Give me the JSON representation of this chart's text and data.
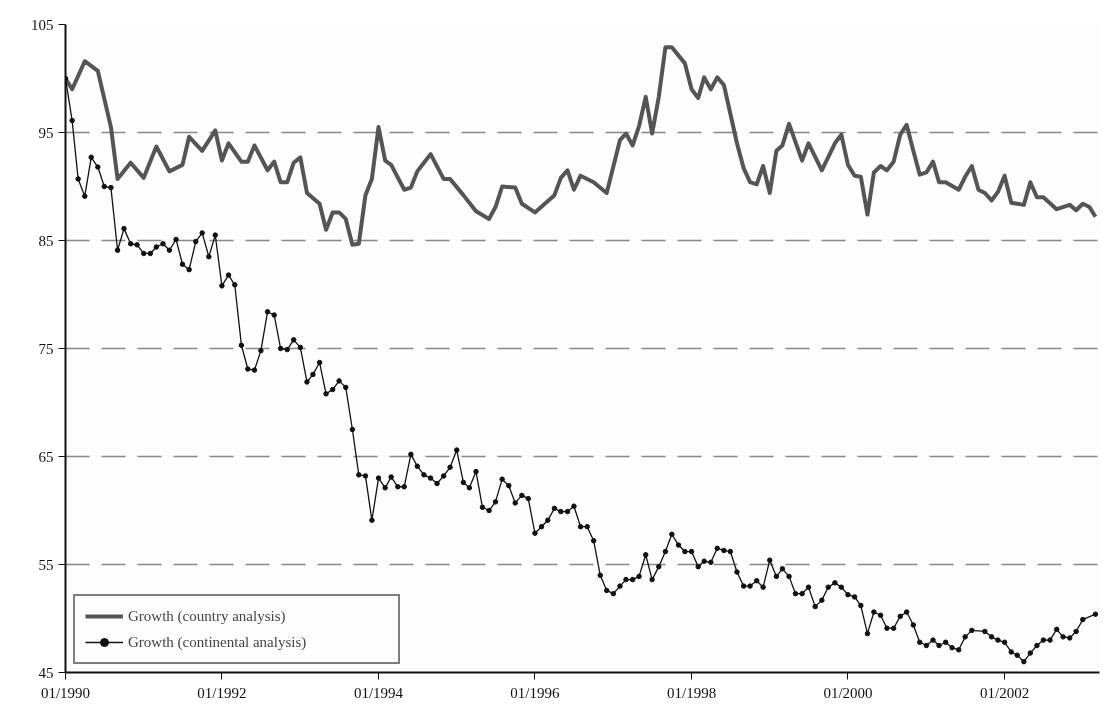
{
  "chart_data": {
    "type": "line",
    "xlim": [
      "1990-01",
      "2003-03-20"
    ],
    "xticks": [
      {
        "value": "1990-01",
        "label": "01/1990"
      },
      {
        "value": "1992-01",
        "label": "01/1992"
      },
      {
        "value": "1994-01",
        "label": "01/1994"
      },
      {
        "value": "1996-01",
        "label": "01/1996"
      },
      {
        "value": "1998-01",
        "label": "01/1998"
      },
      {
        "value": "2000-01",
        "label": "01/2000"
      },
      {
        "value": "2002-01",
        "label": "01/2002"
      }
    ],
    "ylim": [
      45,
      105
    ],
    "yticks": [
      45,
      55,
      65,
      75,
      85,
      95,
      105
    ],
    "grid": "y",
    "legend": "bottom left",
    "line_style": "solid",
    "series": [
      {
        "name": "Growth (country analysis)",
        "color": "#555555",
        "marker": "none",
        "x": [
          "1990-01",
          "1990-02",
          "1990-04",
          "1990-06",
          "1990-08",
          "1990-09",
          "1990-11",
          "1991-01",
          "1991-03",
          "1991-05",
          "1991-07",
          "1991-08",
          "1991-10",
          "1991-12",
          "1992-01",
          "1992-02",
          "1992-04",
          "1992-05",
          "1992-06",
          "1992-08",
          "1992-09",
          "1992-10",
          "1992-11",
          "1992-12",
          "1993-01",
          "1993-02",
          "1993-04",
          "1993-05",
          "1993-06",
          "1993-07",
          "1993-08",
          "1993-09",
          "1993-10",
          "1993-11",
          "1993-12",
          "1994-01",
          "1994-02",
          "1994-03",
          "1994-05",
          "1994-06",
          "1994-07",
          "1994-08",
          "1994-09",
          "1994-11",
          "1994-12",
          "1995-02",
          "1995-04",
          "1995-06",
          "1995-07",
          "1995-08",
          "1995-10",
          "1995-11",
          "1996-01",
          "1996-04",
          "1996-05",
          "1996-06",
          "1996-07",
          "1996-08",
          "1996-10",
          "1996-12",
          "1997-02",
          "1997-03",
          "1997-04",
          "1997-05",
          "1997-06",
          "1997-07",
          "1997-08",
          "1997-09",
          "1997-10",
          "1997-12",
          "1998-01",
          "1998-02",
          "1998-03",
          "1998-04",
          "1998-05",
          "1998-06",
          "1998-08",
          "1998-09",
          "1998-10",
          "1998-11",
          "1998-12",
          "1999-01",
          "1999-02",
          "1999-03",
          "1999-04",
          "1999-06",
          "1999-07",
          "1999-09",
          "1999-11",
          "1999-12",
          "2000-01",
          "2000-02",
          "2000-03",
          "2000-04",
          "2000-05",
          "2000-06",
          "2000-07",
          "2000-08",
          "2000-09",
          "2000-10",
          "2000-11",
          "2000-12",
          "2001-01",
          "2001-02",
          "2001-03",
          "2001-04",
          "2001-06",
          "2001-07",
          "2001-08",
          "2001-09",
          "2001-10",
          "2001-11",
          "2001-12",
          "2002-01",
          "2002-02",
          "2002-04",
          "2002-05",
          "2002-06",
          "2002-07",
          "2002-09",
          "2002-11",
          "2002-12",
          "2003-01",
          "2003-02",
          "2003-03"
        ],
        "values": [
          100,
          99.0,
          101.6,
          100.7,
          95.5,
          90.7,
          92.2,
          90.8,
          93.7,
          91.4,
          92.0,
          94.6,
          93.3,
          95.2,
          92.4,
          94.0,
          92.3,
          92.3,
          93.8,
          91.5,
          92.3,
          90.4,
          90.4,
          92.2,
          92.7,
          89.4,
          88.4,
          86.0,
          87.6,
          87.6,
          87.0,
          84.6,
          84.7,
          89.2,
          90.7,
          95.5,
          92.4,
          92.0,
          89.7,
          89.9,
          91.4,
          92.2,
          93.0,
          90.7,
          90.7,
          89.2,
          87.7,
          87.0,
          88.1,
          90.0,
          89.9,
          88.4,
          87.6,
          89.2,
          90.8,
          91.5,
          89.7,
          91.0,
          90.4,
          89.4,
          94.3,
          94.9,
          93.8,
          95.6,
          98.3,
          94.9,
          98.3,
          102.9,
          102.9,
          101.4,
          99.0,
          98.2,
          100.1,
          99.0,
          100.1,
          99.4,
          94.0,
          91.7,
          90.4,
          90.2,
          91.9,
          89.4,
          93.3,
          93.8,
          95.8,
          92.4,
          94.0,
          91.5,
          94.0,
          94.8,
          92.0,
          91.0,
          90.9,
          87.4,
          91.3,
          91.9,
          91.5,
          92.3,
          94.8,
          95.7,
          93.3,
          91.1,
          91.3,
          92.3,
          90.4,
          90.4,
          89.7,
          90.9,
          91.9,
          89.7,
          89.4,
          88.7,
          89.5,
          91.0,
          88.5,
          88.3,
          90.4,
          89.0,
          89.0,
          87.9,
          88.3,
          87.8,
          88.4,
          88.1,
          87.2
        ]
      },
      {
        "name": "Growth (continental analysis)",
        "color": "#111111",
        "marker": "circle",
        "x": [
          "1990-01",
          "1990-02",
          "1990-03",
          "1990-04",
          "1990-05",
          "1990-06",
          "1990-07",
          "1990-08",
          "1990-09",
          "1990-10",
          "1990-11",
          "1990-12",
          "1991-01",
          "1991-02",
          "1991-03",
          "1991-04",
          "1991-05",
          "1991-06",
          "1991-07",
          "1991-08",
          "1991-09",
          "1991-10",
          "1991-11",
          "1991-12",
          "1992-01",
          "1992-02",
          "1992-03",
          "1992-04",
          "1992-05",
          "1992-06",
          "1992-07",
          "1992-08",
          "1992-09",
          "1992-10",
          "1992-11",
          "1992-12",
          "1993-01",
          "1993-02",
          "1993-03",
          "1993-04",
          "1993-05",
          "1993-06",
          "1993-07",
          "1993-08",
          "1993-09",
          "1993-10",
          "1993-11",
          "1993-12",
          "1994-01",
          "1994-02",
          "1994-03",
          "1994-04",
          "1994-05",
          "1994-06",
          "1994-07",
          "1994-08",
          "1994-09",
          "1994-10",
          "1994-11",
          "1994-12",
          "1995-01",
          "1995-02",
          "1995-03",
          "1995-04",
          "1995-05",
          "1995-06",
          "1995-07",
          "1995-08",
          "1995-09",
          "1995-10",
          "1995-11",
          "1995-12",
          "1996-01",
          "1996-02",
          "1996-03",
          "1996-04",
          "1996-05",
          "1996-06",
          "1996-07",
          "1996-08",
          "1996-09",
          "1996-10",
          "1996-11",
          "1996-12",
          "1997-01",
          "1997-02",
          "1997-03",
          "1997-04",
          "1997-05",
          "1997-06",
          "1997-07",
          "1997-08",
          "1997-09",
          "1997-10",
          "1997-11",
          "1997-12",
          "1998-01",
          "1998-02",
          "1998-03",
          "1998-04",
          "1998-05",
          "1998-06",
          "1998-07",
          "1998-08",
          "1998-09",
          "1998-10",
          "1998-11",
          "1998-12",
          "1999-01",
          "1999-02",
          "1999-03",
          "1999-04",
          "1999-05",
          "1999-06",
          "1999-07",
          "1999-08",
          "1999-09",
          "1999-10",
          "1999-11",
          "1999-12",
          "2000-01",
          "2000-02",
          "2000-03",
          "2000-04",
          "2000-05",
          "2000-06",
          "2000-07",
          "2000-08",
          "2000-09",
          "2000-10",
          "2000-11",
          "2000-12",
          "2001-01",
          "2001-02",
          "2001-03",
          "2001-04",
          "2001-05",
          "2001-06",
          "2001-07",
          "2001-08",
          "2001-10",
          "2001-11",
          "2001-12",
          "2002-01",
          "2002-02",
          "2002-03",
          "2002-04",
          "2002-05",
          "2002-06",
          "2002-07",
          "2002-08",
          "2002-09",
          "2002-10",
          "2002-11",
          "2002-12",
          "2003-01",
          "2003-03"
        ],
        "values": [
          100,
          96.1,
          90.7,
          89.1,
          92.7,
          91.8,
          90.0,
          89.9,
          84.1,
          86.1,
          84.7,
          84.6,
          83.8,
          83.8,
          84.4,
          84.7,
          84.1,
          85.1,
          82.8,
          82.3,
          84.9,
          85.7,
          83.5,
          85.5,
          80.8,
          81.8,
          80.9,
          75.3,
          73.1,
          73.0,
          74.8,
          78.4,
          78.1,
          75.0,
          74.9,
          75.8,
          75.1,
          71.9,
          72.6,
          73.7,
          70.8,
          71.2,
          72.0,
          71.4,
          67.5,
          63.3,
          63.2,
          59.1,
          63.0,
          62.1,
          63.1,
          62.2,
          62.2,
          65.2,
          64.1,
          63.3,
          63.0,
          62.5,
          63.2,
          64.0,
          65.6,
          62.6,
          62.1,
          63.6,
          60.3,
          60.0,
          60.8,
          62.9,
          62.3,
          60.7,
          61.4,
          61.1,
          57.9,
          58.5,
          59.1,
          60.2,
          59.9,
          59.9,
          60.4,
          58.5,
          58.5,
          57.2,
          54.0,
          52.6,
          52.3,
          53.0,
          53.6,
          53.6,
          53.9,
          55.9,
          53.6,
          54.8,
          56.2,
          57.8,
          56.8,
          56.2,
          56.2,
          54.8,
          55.3,
          55.2,
          56.5,
          56.3,
          56.2,
          54.3,
          53.0,
          53.0,
          53.5,
          52.9,
          55.4,
          53.9,
          54.6,
          53.9,
          52.3,
          52.3,
          52.9,
          51.1,
          51.7,
          52.9,
          53.3,
          52.9,
          52.2,
          52.0,
          51.2,
          48.6,
          50.6,
          50.3,
          49.1,
          49.1,
          50.2,
          50.6,
          49.4,
          47.8,
          47.5,
          48.0,
          47.5,
          47.8,
          47.3,
          47.1,
          48.3,
          48.9,
          48.8,
          48.3,
          48.0,
          47.8,
          46.9,
          46.6,
          46.0,
          46.8,
          47.5,
          48.0,
          48.0,
          49.0,
          48.3,
          48.2,
          48.8,
          49.9,
          50.4
        ]
      }
    ]
  }
}
